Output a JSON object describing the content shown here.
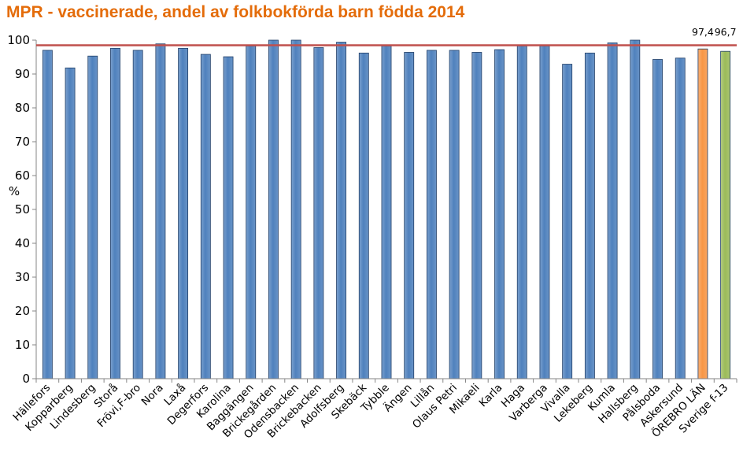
{
  "chart_data": {
    "type": "bar",
    "title": "MPR - vaccinerade, andel av folkbokförda barn födda 2014",
    "ylabel": "%",
    "xlabel": "",
    "ylim": [
      0,
      100
    ],
    "yticks": [
      0,
      10,
      20,
      30,
      40,
      50,
      60,
      70,
      80,
      90,
      100
    ],
    "grid": false,
    "reference_line": {
      "value": 98.5,
      "color": "#c0504d"
    },
    "categories": [
      "Hällefors",
      "Kopparberg",
      "Lindesberg",
      "Storå",
      "Frövi,F-bro",
      "Nora",
      "Laxå",
      "Degerfors",
      "Karolina",
      "Baggängen",
      "Brickegården",
      "Odensbacken",
      "Brickebacken",
      "Adolfsberg",
      "Skebäck",
      "Tybble",
      "Ängen",
      "Lillån",
      "Olaus Petri",
      "Mikaeli",
      "Karla",
      "Haga",
      "Varberga",
      "Vivalla",
      "Lekeberg",
      "Kumla",
      "Hallsberg",
      "Pålsboda",
      "Askersund",
      "ÖREBRO LÄN",
      "Sverige f-13"
    ],
    "values": [
      97.0,
      91.8,
      95.3,
      97.6,
      97.0,
      98.9,
      97.6,
      95.8,
      95.1,
      98.3,
      100,
      100,
      97.8,
      99.4,
      96.2,
      98.3,
      96.4,
      97.0,
      97.0,
      96.4,
      97.2,
      98.3,
      98.3,
      92.9,
      96.2,
      99.2,
      100,
      94.3,
      94.7,
      97.4,
      96.7
    ],
    "colors": {
      "default": "#4f81bd",
      "ÖREBRO LÄN": "#f79646",
      "Sverige f-13": "#9bbb59"
    },
    "data_labels": [
      {
        "category": "ÖREBRO LÄN",
        "text": "97,4"
      },
      {
        "category": "Sverige f-13",
        "text": "96,7"
      }
    ]
  }
}
